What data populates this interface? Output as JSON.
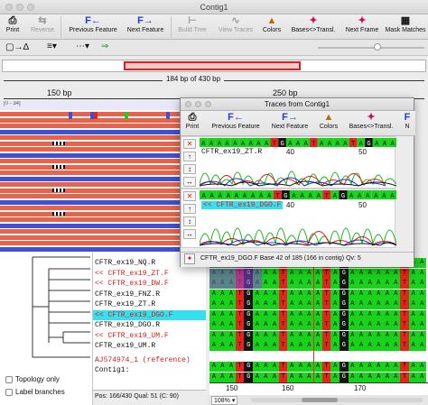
{
  "window": {
    "title": "Contig1"
  },
  "toolbar": {
    "items": [
      {
        "label": "Print",
        "icon": "printer-icon",
        "enabled": true
      },
      {
        "label": "Reverse",
        "icon": "reverse-icon",
        "enabled": false
      },
      {
        "label": "Previous Feature",
        "icon": "previous-feature-icon",
        "enabled": true
      },
      {
        "label": "Next Feature",
        "icon": "next-feature-icon",
        "enabled": true
      },
      {
        "label": "Build Tree",
        "icon": "build-tree-icon",
        "enabled": false
      },
      {
        "label": "View Traces",
        "icon": "view-traces-icon",
        "enabled": false
      },
      {
        "label": "Colors",
        "icon": "colors-icon",
        "enabled": true
      },
      {
        "label": "Bases<>Transl.",
        "icon": "bases-translation-icon",
        "enabled": true
      },
      {
        "label": "Next Frame",
        "icon": "next-frame-icon",
        "enabled": true
      },
      {
        "label": "Mask Matches",
        "icon": "mask-matches-icon",
        "enabled": true
      }
    ]
  },
  "overview": {
    "summary": "184 bp of 430 bp"
  },
  "ruler": {
    "labels": [
      "150 bp",
      "250 bp"
    ]
  },
  "reads": {
    "header": "[0 - 34]"
  },
  "tree": {
    "topology_only_label": "Topology only",
    "label_branches_label": "Label branches"
  },
  "names": {
    "rows": [
      {
        "text": "CFTR_ex19_NQ.R",
        "style": "normal"
      },
      {
        "text": "<< CFTR_ex19_ZT.F",
        "style": "red"
      },
      {
        "text": "<< CFTR_ex19_DW.F",
        "style": "red"
      },
      {
        "text": "CFTR_ex19_FNZ.R",
        "style": "normal"
      },
      {
        "text": "CFTR_ex19_ZT.R",
        "style": "normal"
      },
      {
        "text": "<< CFTR_ex19_DGO.F",
        "style": "selected"
      },
      {
        "text": "CFTR_ex19_DGO.R",
        "style": "normal"
      },
      {
        "text": "<< CFTR_ex19_UM.F",
        "style": "red"
      },
      {
        "text": "CFTR_ex19_UM.R",
        "style": "normal"
      },
      {
        "text": "AJ574974_1 (reference)",
        "style": "ref"
      },
      {
        "text": "Contig1:",
        "style": "normal"
      }
    ]
  },
  "status": {
    "text": "Pos: 166/430  Qual: 51 (C: 90)"
  },
  "bottom_ruler": {
    "labels": [
      "150",
      "160",
      "170"
    ]
  },
  "zoom": {
    "value": "108%"
  },
  "popup": {
    "title": "Traces from Contig1",
    "toolbar": [
      "Print",
      "Previous Feature",
      "Next Feature",
      "Colors",
      "Bases<>Transl.",
      "N"
    ],
    "trace1": {
      "name": "CFTR_ex19_ZT.R",
      "ticks": [
        "40",
        "50"
      ]
    },
    "trace2": {
      "name": "<< CFTR_ex19_DGO.F",
      "ticks": [
        "40",
        "50"
      ],
      "bases": "AAAAAAAAAT AAAATAGAAAAAA"
    },
    "status": "CFTR_ex19_DGO.F  Base 42 of 185 (166 in contig)  Qv: 5"
  },
  "colors": {
    "A": "#19d21c",
    "C": "#2a35e8",
    "G": "#151515",
    "T": "#e3251f",
    "gap": "#ffffff",
    "read_forward": "#e8634a",
    "read_blue": "#3f4fd6",
    "selected_row": "#34e0ee",
    "accent_red": "#e02020"
  }
}
